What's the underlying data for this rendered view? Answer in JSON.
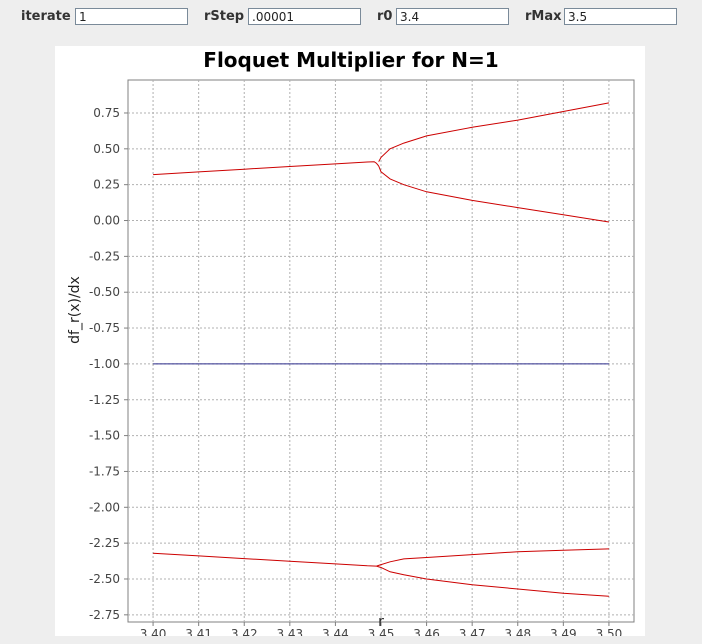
{
  "controls": {
    "iterate": {
      "label": "iterate",
      "value": "1"
    },
    "rStep": {
      "label": "rStep",
      "value": ".00001"
    },
    "r0": {
      "label": "r0",
      "value": "3.4"
    },
    "rMax": {
      "label": "rMax",
      "value": "3.5"
    }
  },
  "chart_data": {
    "type": "line",
    "title": "Floquet Multiplier for N=1",
    "xlabel": "r",
    "ylabel": "df_r(x)/dx",
    "xlim": [
      3.3945,
      3.5055
    ],
    "ylim": [
      -2.8,
      0.98
    ],
    "x_ticks": [
      3.4,
      3.41,
      3.42,
      3.43,
      3.44,
      3.45,
      3.46,
      3.47,
      3.48,
      3.49,
      3.5
    ],
    "x_tick_labels": [
      "3.40",
      "3.41",
      "3.42",
      "3.43",
      "3.44",
      "3.45",
      "3.46",
      "3.47",
      "3.48",
      "3.49",
      "3.50"
    ],
    "y_ticks": [
      0.75,
      0.5,
      0.25,
      0,
      -0.25,
      -0.5,
      -0.75,
      -1,
      -1.25,
      -1.5,
      -1.75,
      -2,
      -2.25,
      -2.5,
      -2.75
    ],
    "y_tick_labels": [
      "0.75",
      "0.50",
      "0.25",
      "0.00",
      "-0.25",
      "-0.50",
      "-0.75",
      "-1.00",
      "-1.25",
      "-1.50",
      "-1.75",
      "-2.00",
      "-2.25",
      "-2.50",
      "-2.75"
    ],
    "grid": true,
    "colors": {
      "multiplier": "#cc0000",
      "reference": "#2a2a8a"
    },
    "series": [
      {
        "values": [
          [
            3.4,
            0.32
          ],
          [
            3.41,
            0.339
          ],
          [
            3.42,
            0.358
          ],
          [
            3.43,
            0.377
          ],
          [
            3.44,
            0.395
          ],
          [
            3.447,
            0.408
          ],
          [
            3.4485,
            0.41
          ],
          [
            3.449,
            0.4
          ],
          [
            3.4495,
            0.38
          ]
        ]
      },
      {
        "values": [
          [
            3.4495,
            0.41
          ],
          [
            3.45,
            0.44
          ],
          [
            3.452,
            0.5
          ],
          [
            3.455,
            0.54
          ],
          [
            3.46,
            0.59
          ],
          [
            3.47,
            0.65
          ],
          [
            3.48,
            0.7
          ],
          [
            3.49,
            0.76
          ],
          [
            3.5,
            0.82
          ]
        ]
      },
      {
        "values": [
          [
            3.4495,
            0.38
          ],
          [
            3.45,
            0.34
          ],
          [
            3.452,
            0.29
          ],
          [
            3.455,
            0.25
          ],
          [
            3.46,
            0.2
          ],
          [
            3.47,
            0.14
          ],
          [
            3.48,
            0.09
          ],
          [
            3.49,
            0.04
          ],
          [
            3.5,
            -0.01
          ]
        ]
      },
      {
        "values": [
          [
            3.4,
            -2.32
          ],
          [
            3.41,
            -2.339
          ],
          [
            3.42,
            -2.358
          ],
          [
            3.43,
            -2.377
          ],
          [
            3.44,
            -2.395
          ],
          [
            3.447,
            -2.408
          ],
          [
            3.449,
            -2.41
          ]
        ]
      },
      {
        "values": [
          [
            3.449,
            -2.41
          ],
          [
            3.45,
            -2.4
          ],
          [
            3.452,
            -2.38
          ],
          [
            3.455,
            -2.36
          ],
          [
            3.46,
            -2.35
          ],
          [
            3.47,
            -2.33
          ],
          [
            3.48,
            -2.31
          ],
          [
            3.49,
            -2.3
          ],
          [
            3.5,
            -2.29
          ]
        ]
      },
      {
        "values": [
          [
            3.449,
            -2.41
          ],
          [
            3.45,
            -2.42
          ],
          [
            3.452,
            -2.45
          ],
          [
            3.455,
            -2.47
          ],
          [
            3.46,
            -2.5
          ],
          [
            3.47,
            -2.54
          ],
          [
            3.48,
            -2.57
          ],
          [
            3.49,
            -2.6
          ],
          [
            3.5,
            -2.62
          ]
        ]
      },
      {
        "values": [
          [
            3.4,
            -1.0
          ],
          [
            3.5,
            -1.0
          ]
        ]
      }
    ]
  }
}
